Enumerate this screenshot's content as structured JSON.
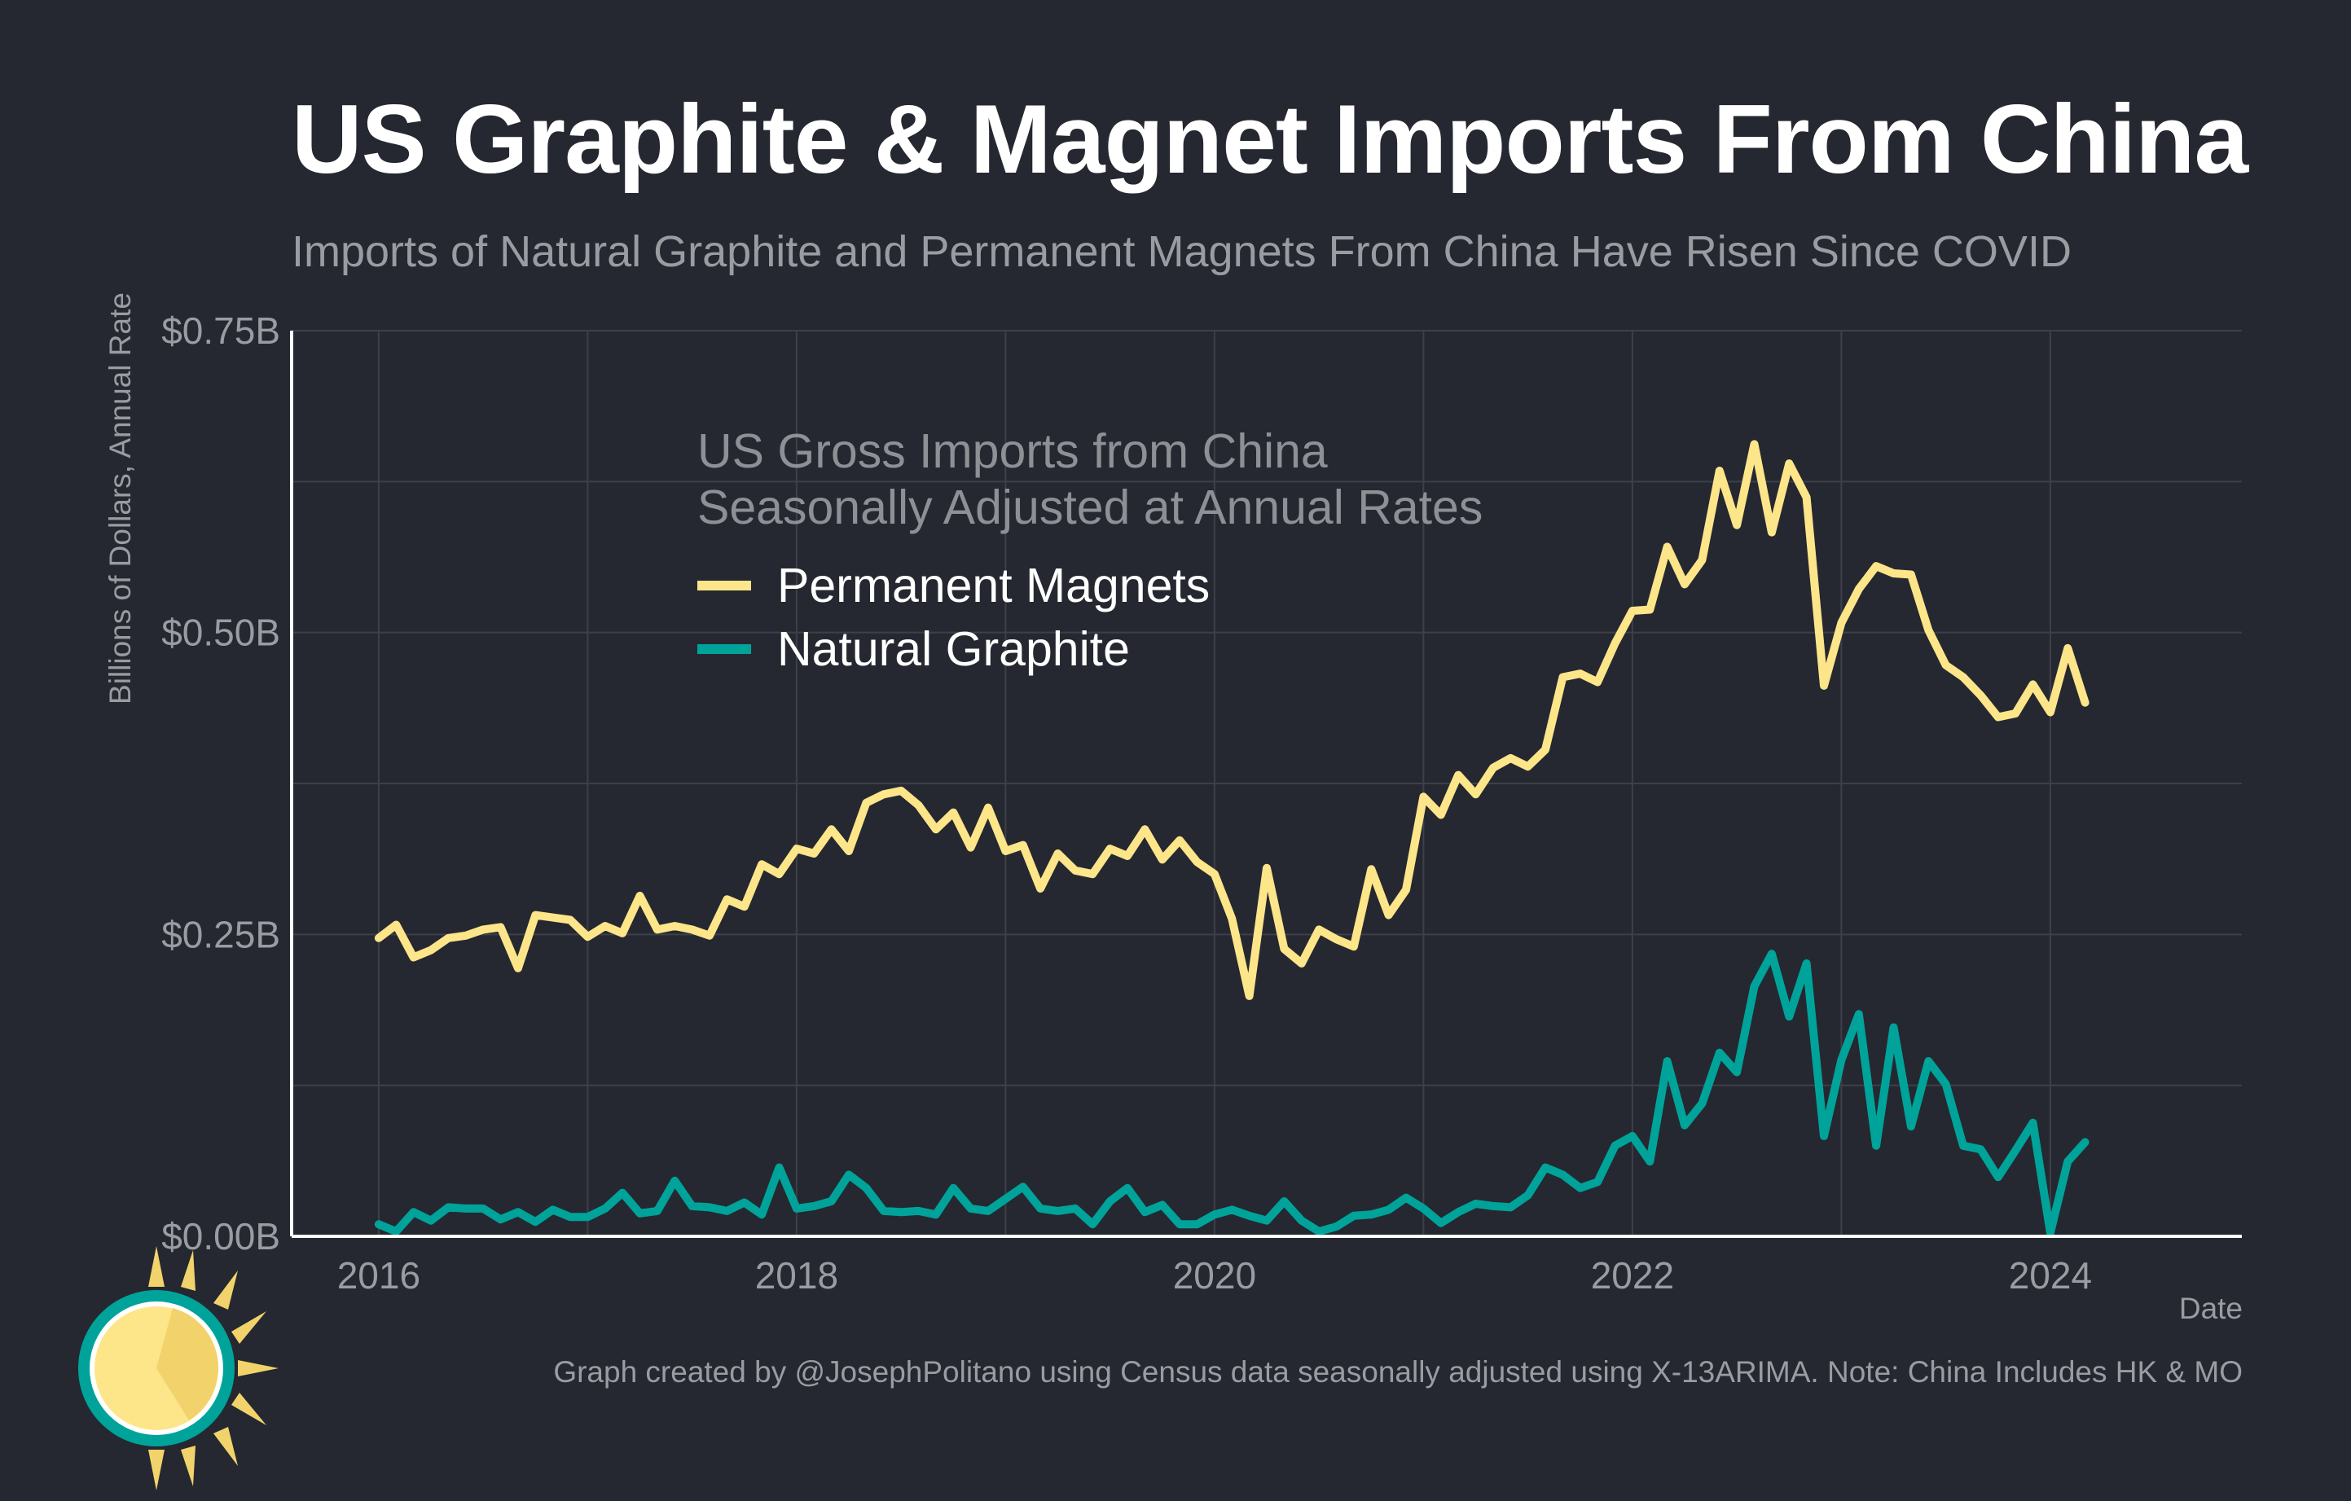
{
  "header": {
    "title": "US Graphite & Magnet Imports From China",
    "subtitle": "Imports of Natural Graphite and Permanent Magnets From China Have Risen Since COVID"
  },
  "legend": {
    "line1": "US Gross Imports from China",
    "line2": "Seasonally Adjusted at Annual Rates"
  },
  "footer": {
    "credit": "Graph created by @JosephPolitano using Census data seasonally adjusted using X-13ARIMA. Note: China Includes HK & MO"
  },
  "colors": {
    "background": "#252830",
    "magnets": "#FDE58A",
    "graphite": "#00A39A",
    "grid": "#3d4048",
    "axis": "#ffffff"
  },
  "chart_data": {
    "type": "line",
    "xlabel": "Date",
    "ylabel": "Billions of Dollars, Annual Rate",
    "x_start": "2016-01",
    "x_frequency": "monthly",
    "xlim": [
      "2015-08",
      "2024-12"
    ],
    "ylim": [
      0,
      0.75
    ],
    "yticks": [
      0,
      0.25,
      0.5,
      0.75
    ],
    "ytick_labels": [
      "$0.00B",
      "$0.25B",
      "$0.50B",
      "$0.75B"
    ],
    "xticks": [
      "2016-01",
      "2018-01",
      "2020-01",
      "2022-01",
      "2024-01"
    ],
    "xtick_labels": [
      "2016",
      "2018",
      "2020",
      "2022",
      "2024"
    ],
    "grid": true,
    "legend_position": "top-center",
    "series": [
      {
        "name": "Permanent Magnets",
        "color": "#FDE58A",
        "values": [
          0.247,
          0.258,
          0.231,
          0.237,
          0.247,
          0.249,
          0.254,
          0.256,
          0.222,
          0.266,
          0.264,
          0.262,
          0.248,
          0.257,
          0.251,
          0.282,
          0.254,
          0.257,
          0.254,
          0.249,
          0.279,
          0.273,
          0.308,
          0.3,
          0.321,
          0.317,
          0.337,
          0.319,
          0.359,
          0.366,
          0.369,
          0.357,
          0.337,
          0.351,
          0.322,
          0.355,
          0.319,
          0.324,
          0.288,
          0.317,
          0.303,
          0.3,
          0.321,
          0.315,
          0.337,
          0.312,
          0.328,
          0.31,
          0.3,
          0.263,
          0.199,
          0.305,
          0.238,
          0.226,
          0.254,
          0.246,
          0.24,
          0.304,
          0.266,
          0.287,
          0.364,
          0.349,
          0.382,
          0.366,
          0.388,
          0.396,
          0.389,
          0.403,
          0.463,
          0.466,
          0.459,
          0.491,
          0.518,
          0.519,
          0.571,
          0.54,
          0.56,
          0.634,
          0.589,
          0.656,
          0.583,
          0.64,
          0.612,
          0.456,
          0.508,
          0.536,
          0.555,
          0.549,
          0.548,
          0.502,
          0.473,
          0.463,
          0.448,
          0.43,
          0.433,
          0.457,
          0.434,
          0.487,
          0.442
        ]
      },
      {
        "name": "Natural Graphite",
        "color": "#00A39A",
        "values": [
          0.01,
          0.004,
          0.02,
          0.013,
          0.024,
          0.023,
          0.023,
          0.014,
          0.02,
          0.012,
          0.022,
          0.016,
          0.016,
          0.023,
          0.036,
          0.019,
          0.021,
          0.046,
          0.025,
          0.024,
          0.021,
          0.028,
          0.018,
          0.057,
          0.023,
          0.025,
          0.029,
          0.051,
          0.04,
          0.021,
          0.02,
          0.021,
          0.018,
          0.04,
          0.023,
          0.021,
          0.031,
          0.041,
          0.023,
          0.021,
          0.023,
          0.01,
          0.029,
          0.04,
          0.02,
          0.026,
          0.01,
          0.01,
          0.018,
          0.022,
          0.017,
          0.013,
          0.029,
          0.013,
          0.004,
          0.008,
          0.017,
          0.018,
          0.022,
          0.032,
          0.023,
          0.011,
          0.02,
          0.027,
          0.025,
          0.024,
          0.034,
          0.057,
          0.051,
          0.04,
          0.045,
          0.075,
          0.083,
          0.062,
          0.145,
          0.092,
          0.11,
          0.152,
          0.136,
          0.207,
          0.234,
          0.182,
          0.226,
          0.083,
          0.146,
          0.184,
          0.075,
          0.173,
          0.091,
          0.145,
          0.126,
          0.075,
          0.072,
          0.049,
          0.071,
          0.094,
          0.003,
          0.062,
          0.078
        ]
      }
    ]
  }
}
